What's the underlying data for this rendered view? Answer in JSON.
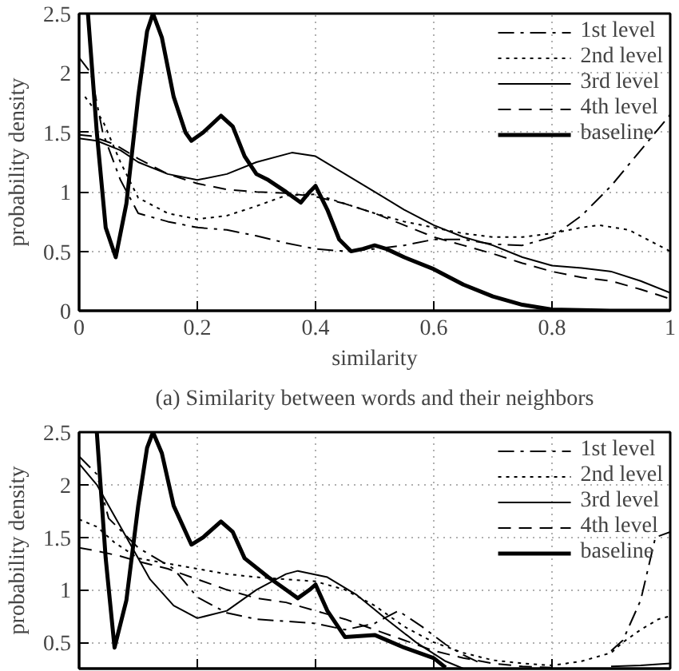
{
  "chart_data": [
    {
      "type": "line",
      "xlabel": "similarity",
      "ylabel": "probability density",
      "annotations": [
        "(a) Similarity between words and their neighbors"
      ],
      "xlim": [
        0,
        1
      ],
      "ylim": [
        0,
        2.5
      ],
      "xticks": [
        0,
        0.2,
        0.4,
        0.6,
        0.8,
        1
      ],
      "yticks": [
        0,
        0.5,
        1,
        1.5,
        2,
        2.5
      ],
      "grid": true,
      "legend": "top right",
      "series": [
        {
          "name": "1st level",
          "color": "#000000",
          "line_style": "dashdot",
          "x": [
            0,
            0.02,
            0.04,
            0.07,
            0.1,
            0.15,
            0.2,
            0.25,
            0.3,
            0.35,
            0.4,
            0.45,
            0.5,
            0.55,
            0.6,
            0.65,
            0.7,
            0.75,
            0.8,
            0.85,
            0.9,
            0.95,
            1.0
          ],
          "values": [
            2.13,
            2.0,
            1.5,
            1.1,
            0.82,
            0.75,
            0.7,
            0.68,
            0.63,
            0.57,
            0.52,
            0.5,
            0.52,
            0.55,
            0.6,
            0.6,
            0.56,
            0.55,
            0.62,
            0.8,
            1.05,
            1.35,
            1.65
          ]
        },
        {
          "name": "2nd level",
          "color": "#000000",
          "line_style": "dotted",
          "x": [
            0.01,
            0.04,
            0.07,
            0.1,
            0.15,
            0.2,
            0.25,
            0.3,
            0.35,
            0.4,
            0.45,
            0.5,
            0.55,
            0.6,
            0.65,
            0.7,
            0.75,
            0.8,
            0.85,
            0.88,
            0.93,
            1.0
          ],
          "values": [
            1.8,
            1.6,
            1.25,
            0.95,
            0.82,
            0.77,
            0.8,
            0.88,
            0.97,
            0.98,
            0.9,
            0.82,
            0.75,
            0.7,
            0.65,
            0.62,
            0.62,
            0.65,
            0.7,
            0.72,
            0.68,
            0.5
          ]
        },
        {
          "name": "3rd level",
          "color": "#000000",
          "line_style": "solid",
          "x": [
            0,
            0.03,
            0.07,
            0.1,
            0.15,
            0.2,
            0.25,
            0.3,
            0.36,
            0.4,
            0.45,
            0.5,
            0.55,
            0.6,
            0.65,
            0.7,
            0.75,
            0.8,
            0.85,
            0.9,
            0.95,
            1.0
          ],
          "values": [
            1.45,
            1.43,
            1.35,
            1.25,
            1.15,
            1.1,
            1.15,
            1.25,
            1.33,
            1.3,
            1.15,
            1.0,
            0.85,
            0.72,
            0.62,
            0.55,
            0.45,
            0.38,
            0.36,
            0.33,
            0.25,
            0.15
          ]
        },
        {
          "name": "4th level",
          "color": "#000000",
          "line_style": "dashed",
          "x": [
            0,
            0.02,
            0.06,
            0.1,
            0.15,
            0.2,
            0.25,
            0.3,
            0.35,
            0.4,
            0.45,
            0.5,
            0.55,
            0.6,
            0.65,
            0.7,
            0.75,
            0.8,
            0.85,
            0.9,
            0.95,
            1.0
          ],
          "values": [
            1.48,
            1.47,
            1.4,
            1.28,
            1.15,
            1.07,
            1.02,
            1.0,
            0.99,
            0.96,
            0.9,
            0.82,
            0.72,
            0.62,
            0.55,
            0.48,
            0.4,
            0.33,
            0.28,
            0.25,
            0.18,
            0.1
          ]
        },
        {
          "name": "baseline",
          "color": "#000000",
          "line_style": "solid",
          "x": [
            0.015,
            0.03,
            0.045,
            0.062,
            0.08,
            0.1,
            0.115,
            0.125,
            0.14,
            0.16,
            0.18,
            0.19,
            0.21,
            0.24,
            0.26,
            0.28,
            0.3,
            0.32,
            0.35,
            0.375,
            0.39,
            0.4,
            0.42,
            0.44,
            0.46,
            0.48,
            0.5,
            0.52,
            0.55,
            0.6,
            0.65,
            0.7,
            0.75,
            0.8,
            0.9,
            1.0
          ],
          "values": [
            2.5,
            1.5,
            0.7,
            0.45,
            0.9,
            1.8,
            2.35,
            2.5,
            2.3,
            1.8,
            1.5,
            1.43,
            1.5,
            1.64,
            1.55,
            1.3,
            1.15,
            1.1,
            1.0,
            0.91,
            1.0,
            1.05,
            0.85,
            0.6,
            0.5,
            0.52,
            0.55,
            0.52,
            0.45,
            0.35,
            0.22,
            0.12,
            0.05,
            0.01,
            0,
            0
          ]
        }
      ]
    },
    {
      "type": "line",
      "ylabel": "probability density",
      "xlim": [
        0,
        1
      ],
      "ylim": [
        0.25,
        2.5
      ],
      "xticks": [
        {
          "value": 0,
          "label": null
        },
        {
          "value": 0.2,
          "label": null
        },
        {
          "value": 0.4,
          "label": null
        },
        {
          "value": 0.6,
          "label": null
        },
        {
          "value": 0.8,
          "label": null
        },
        {
          "value": 1,
          "label": null
        }
      ],
      "yticks": [
        0.5,
        1,
        1.5,
        2,
        2.5
      ],
      "tick_labels": "y",
      "grid": true,
      "legend": "top right",
      "series": [
        {
          "name": "1st level",
          "color": "#000000",
          "line_style": "dashdot",
          "x": [
            0,
            0.03,
            0.05,
            0.1,
            0.16,
            0.2,
            0.25,
            0.3,
            0.35,
            0.4,
            0.45,
            0.5,
            0.54,
            0.58,
            0.62,
            0.65,
            0.68,
            0.8,
            0.9,
            0.92,
            0.95,
            0.975,
            1.0
          ],
          "values": [
            2.27,
            2.1,
            1.68,
            1.4,
            1.2,
            0.93,
            0.78,
            0.72,
            0.7,
            0.68,
            0.62,
            0.68,
            0.8,
            0.65,
            0.48,
            0.38,
            0.3,
            null,
            0.42,
            0.52,
            0.9,
            1.5,
            1.55
          ]
        },
        {
          "name": "2nd level",
          "color": "#000000",
          "line_style": "dotted",
          "x": [
            0,
            0.03,
            0.06,
            0.1,
            0.15,
            0.2,
            0.25,
            0.3,
            0.35,
            0.4,
            0.45,
            0.5,
            0.55,
            0.6,
            0.65,
            0.7,
            0.75,
            0.8,
            0.85,
            0.9,
            0.92,
            0.95,
            0.98,
            1.0
          ],
          "values": [
            1.67,
            1.6,
            1.45,
            1.3,
            1.25,
            1.2,
            1.15,
            1.12,
            1.1,
            1.08,
            1.0,
            0.85,
            0.65,
            0.5,
            0.4,
            0.33,
            0.3,
            0.28,
            0.32,
            0.4,
            0.5,
            0.62,
            0.72,
            0.75
          ]
        },
        {
          "name": "3rd level",
          "color": "#000000",
          "line_style": "solid",
          "x": [
            0,
            0.03,
            0.08,
            0.12,
            0.16,
            0.2,
            0.25,
            0.3,
            0.35,
            0.37,
            0.42,
            0.47,
            0.52,
            0.57,
            0.62,
            0.65,
            0.8,
            0.9,
            0.95,
            1.0
          ],
          "values": [
            2.2,
            2.0,
            1.5,
            1.1,
            0.85,
            0.73,
            0.8,
            1.0,
            1.15,
            1.18,
            1.12,
            0.95,
            0.72,
            0.5,
            0.32,
            0.25,
            null,
            0.27,
            0.28,
            0.3
          ]
        },
        {
          "name": "4th level",
          "color": "#000000",
          "line_style": "dashed",
          "x": [
            0,
            0.03,
            0.07,
            0.1,
            0.15,
            0.2,
            0.25,
            0.3,
            0.35,
            0.4,
            0.45,
            0.5,
            0.55,
            0.6,
            0.65,
            0.7,
            0.75,
            0.8
          ],
          "values": [
            1.4,
            1.37,
            1.32,
            1.27,
            1.2,
            1.1,
            1.0,
            0.92,
            0.88,
            0.8,
            0.72,
            0.62,
            0.52,
            0.42,
            0.35,
            0.3,
            0.27,
            0.26
          ]
        },
        {
          "name": "baseline",
          "color": "#000000",
          "line_style": "solid",
          "x": [
            0.03,
            0.045,
            0.06,
            0.08,
            0.1,
            0.115,
            0.125,
            0.14,
            0.16,
            0.19,
            0.21,
            0.24,
            0.26,
            0.28,
            0.32,
            0.35,
            0.37,
            0.39,
            0.4,
            0.42,
            0.45,
            0.5,
            0.55,
            0.6,
            0.62
          ],
          "values": [
            2.5,
            1.3,
            0.45,
            0.9,
            1.8,
            2.35,
            2.5,
            2.3,
            1.8,
            1.43,
            1.5,
            1.65,
            1.55,
            1.3,
            1.12,
            1.0,
            0.92,
            1.0,
            1.05,
            0.8,
            0.55,
            0.57,
            0.45,
            0.35,
            0.26
          ]
        }
      ]
    }
  ]
}
